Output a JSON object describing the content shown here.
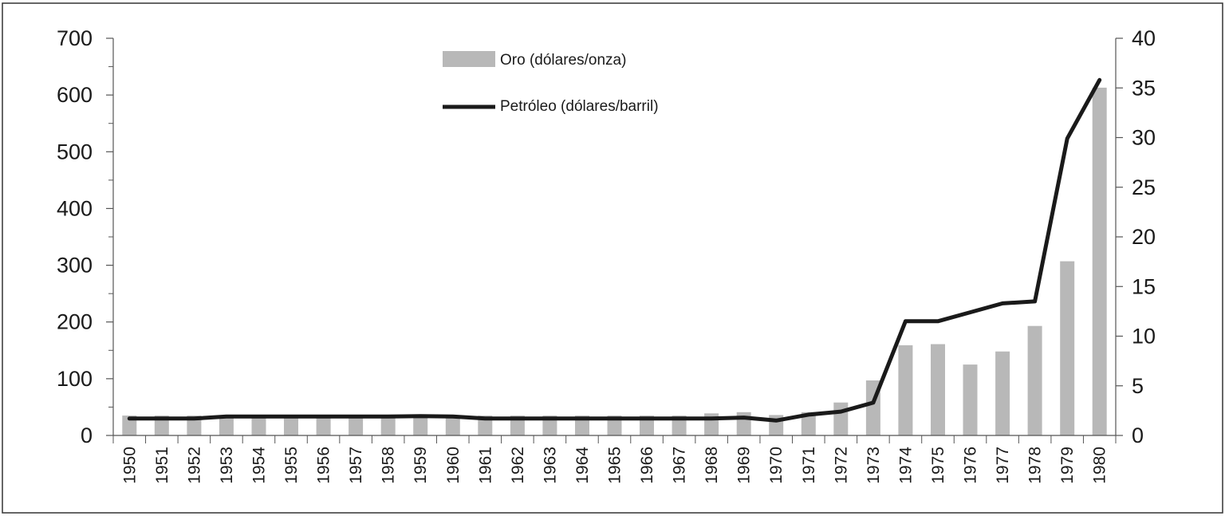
{
  "chart_data": {
    "type": "bar",
    "categories": [
      "1950",
      "1951",
      "1952",
      "1953",
      "1954",
      "1955",
      "1956",
      "1957",
      "1958",
      "1959",
      "1960",
      "1961",
      "1962",
      "1963",
      "1964",
      "1965",
      "1966",
      "1967",
      "1968",
      "1969",
      "1970",
      "1971",
      "1972",
      "1973",
      "1974",
      "1975",
      "1976",
      "1977",
      "1978",
      "1979",
      "1980"
    ],
    "series": [
      {
        "name": "Oro (dólares/onza)",
        "type": "bar",
        "axis": "left",
        "color": "#b8b8b8",
        "values": [
          35,
          35,
          35,
          35,
          35,
          35,
          35,
          35,
          35,
          35,
          35,
          35,
          35,
          35,
          35,
          35,
          35,
          35,
          39,
          41,
          36,
          41,
          58,
          97,
          159,
          161,
          125,
          148,
          193,
          307,
          613
        ]
      },
      {
        "name": "Petróleo (dólares/barril)",
        "type": "line",
        "axis": "right",
        "color": "#1a1a1a",
        "values": [
          1.7,
          1.7,
          1.7,
          1.9,
          1.9,
          1.9,
          1.9,
          1.9,
          1.9,
          1.95,
          1.9,
          1.7,
          1.7,
          1.7,
          1.7,
          1.7,
          1.7,
          1.7,
          1.7,
          1.8,
          1.5,
          2.1,
          2.4,
          3.3,
          11.5,
          11.5,
          12.4,
          13.3,
          13.5,
          29.9,
          35.8
        ]
      }
    ],
    "left_axis": {
      "ylim": [
        0,
        700
      ],
      "ticks": [
        "0",
        "100",
        "200",
        "300",
        "400",
        "500",
        "600",
        "700"
      ]
    },
    "right_axis": {
      "ylim": [
        0,
        40
      ],
      "ticks": [
        "0",
        "5",
        "10",
        "15",
        "20",
        "25",
        "30",
        "35",
        "40"
      ]
    },
    "grid": false,
    "legend": {
      "placement": "top-center"
    },
    "xlabel": "",
    "ylabel": "",
    "title": ""
  }
}
